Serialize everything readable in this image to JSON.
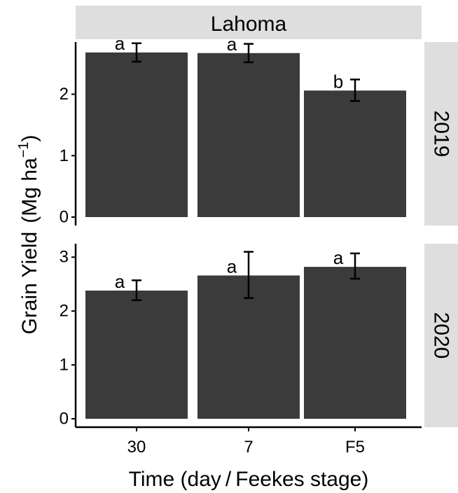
{
  "chart_data": {
    "type": "bar",
    "column_strip": "Lahoma",
    "xlabel": "Time (day / Feekes stage)",
    "ylabel": "Grain Yield",
    "ylabel_unit": "(Mg ha",
    "ylabel_unit_exp": "−1",
    "ylabel_unit_close": ")",
    "categories": [
      "30",
      "7",
      "F5"
    ],
    "colors": {
      "bar": "#3b3b3b",
      "strip": "#dedede"
    },
    "grid": false,
    "panels": [
      {
        "strip": "2019",
        "ylim": [
          0,
          2.85
        ],
        "yticks": [
          0,
          1,
          2
        ],
        "values": [
          2.68,
          2.67,
          2.06
        ],
        "err_low": [
          2.53,
          2.52,
          1.89
        ],
        "err_high": [
          2.83,
          2.82,
          2.24
        ],
        "letters": [
          "a",
          "a",
          "b"
        ]
      },
      {
        "strip": "2020",
        "ylim": [
          0,
          3.25
        ],
        "yticks": [
          0,
          1,
          2,
          3
        ],
        "values": [
          2.38,
          2.66,
          2.82
        ],
        "err_low": [
          2.2,
          2.24,
          2.6
        ],
        "err_high": [
          2.57,
          3.1,
          3.07
        ],
        "letters": [
          "a",
          "a",
          "a"
        ]
      }
    ]
  }
}
